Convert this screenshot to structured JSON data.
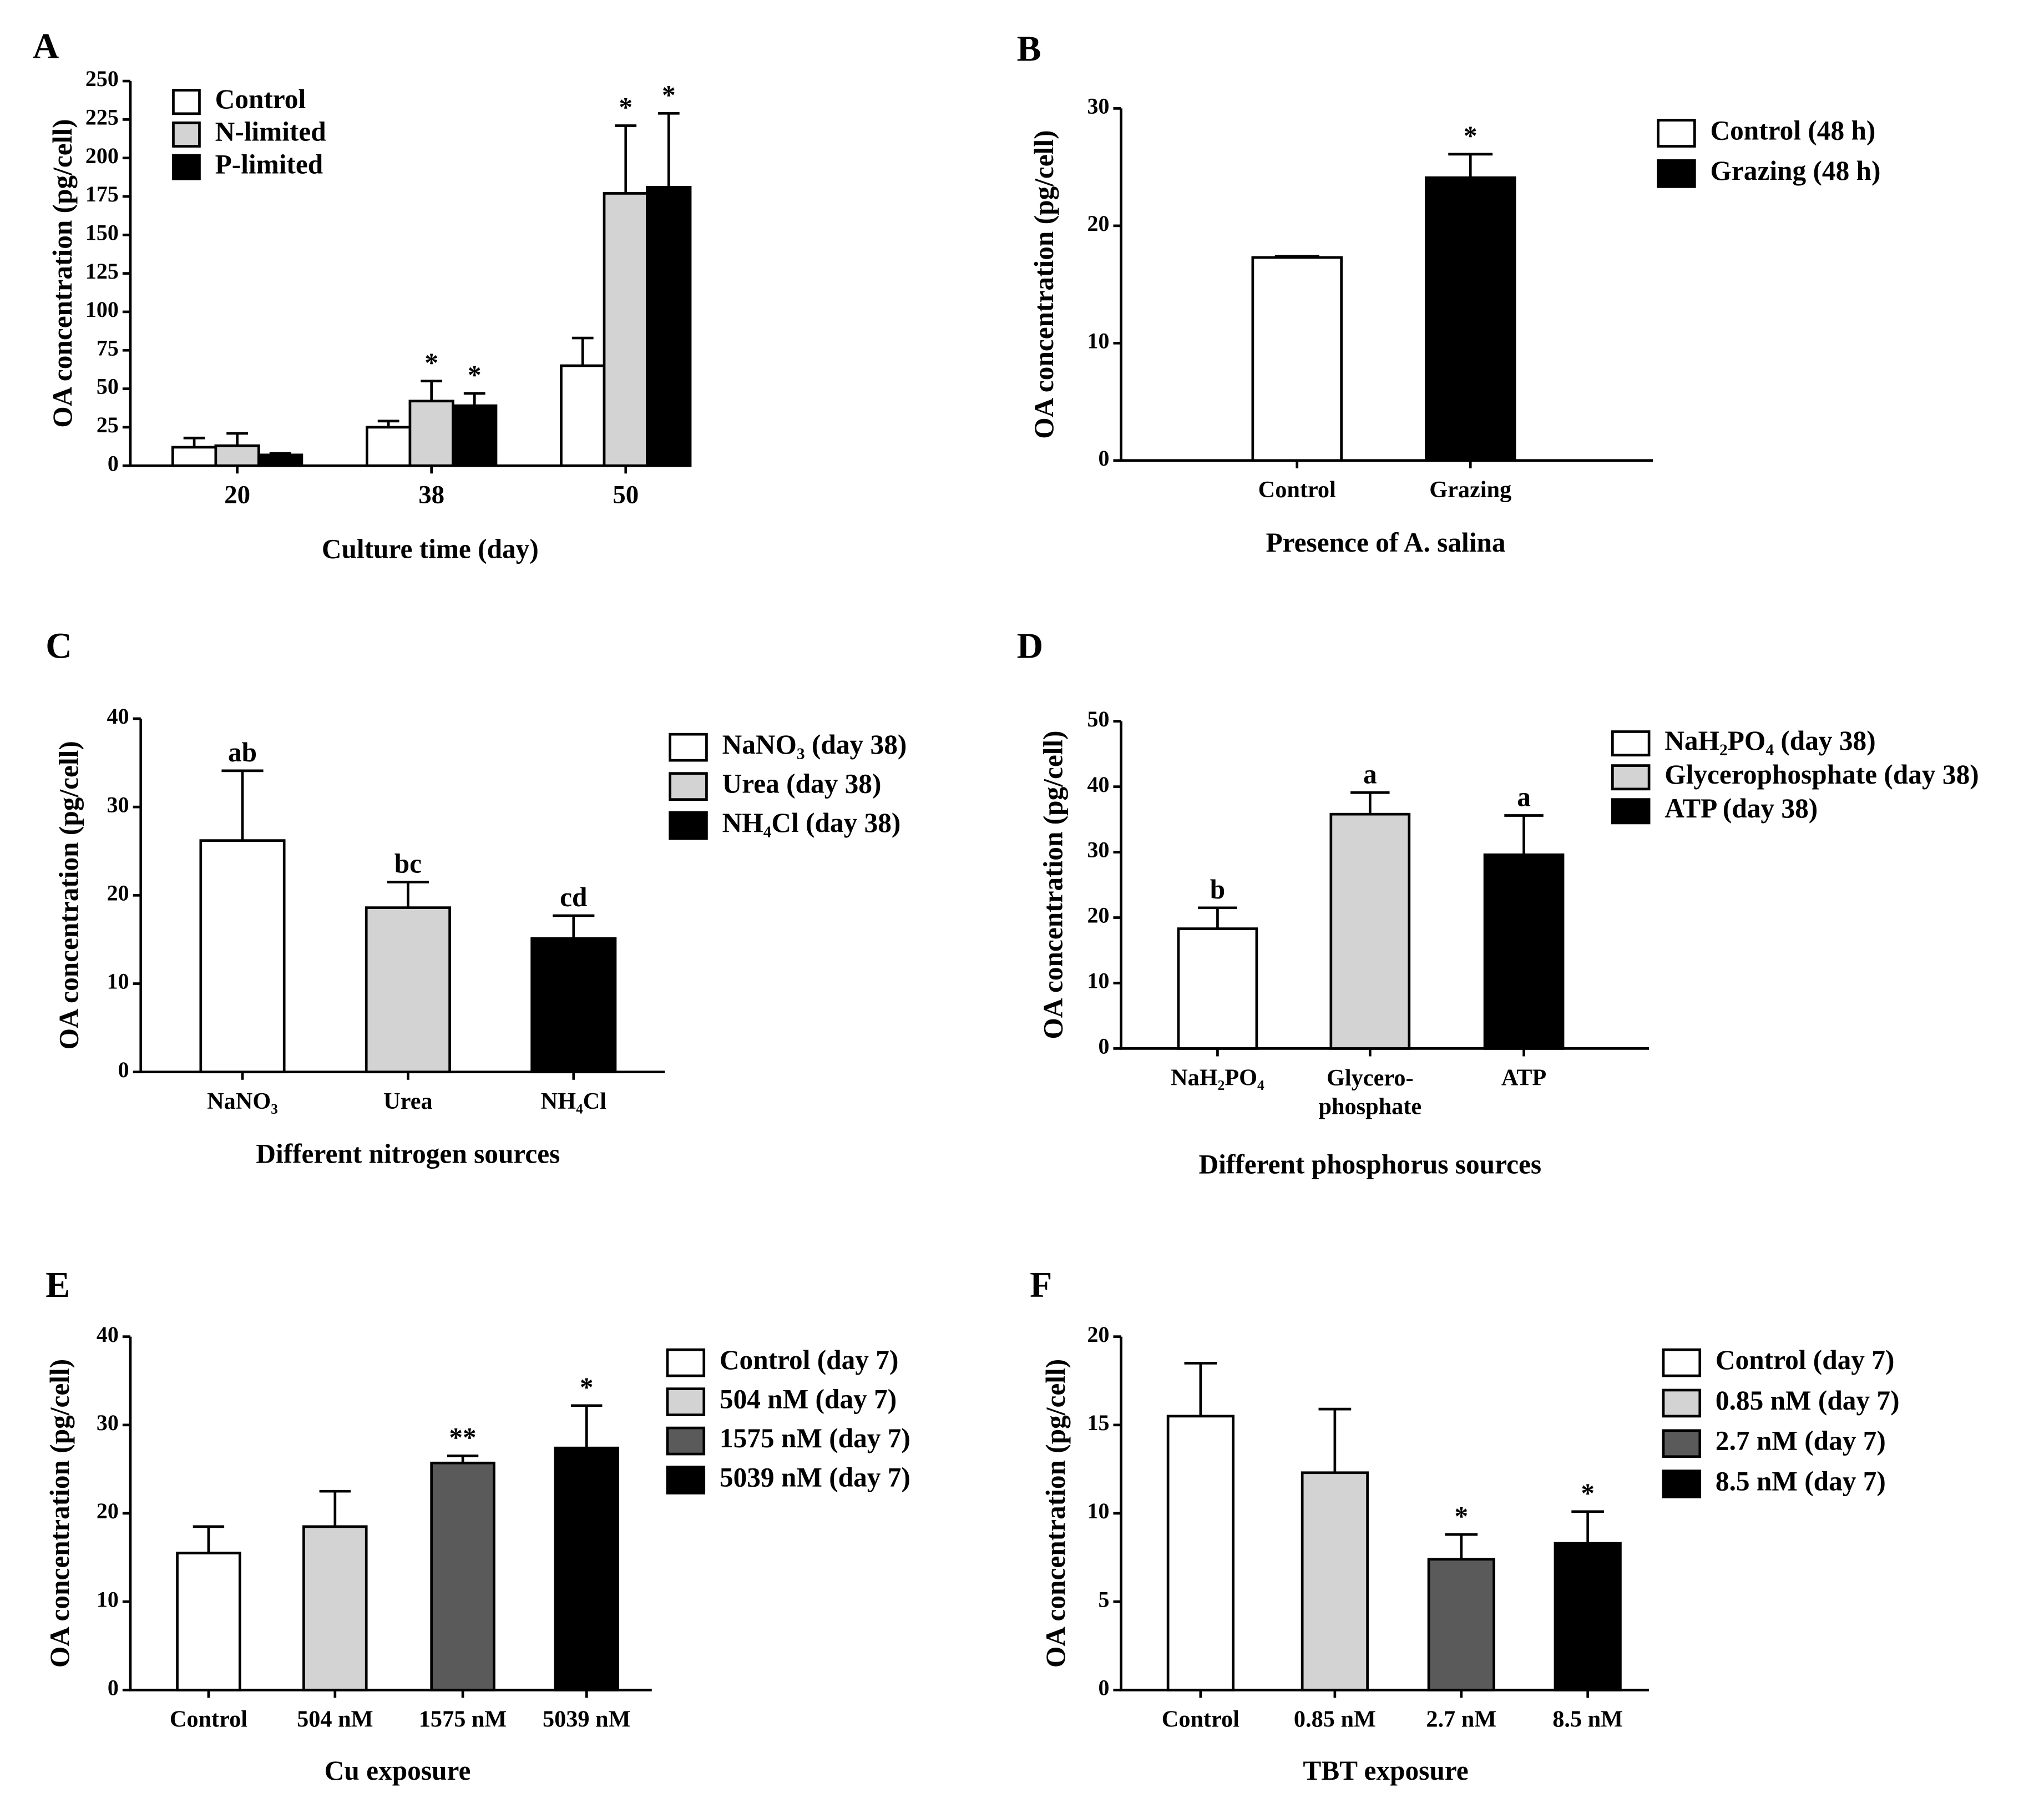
{
  "chart_data": [
    {
      "type": "bar",
      "panel": "A",
      "ylabel": "OA concentration (pg/cell)",
      "xlabel": "Culture time (day)",
      "categories": [
        "20",
        "38",
        "50"
      ],
      "series": [
        {
          "name": "Control",
          "color": "#ffffff",
          "values": [
            12,
            25,
            65
          ],
          "errors": [
            6,
            4,
            18
          ],
          "labels": [
            null,
            null,
            null
          ]
        },
        {
          "name": "N-limited",
          "color": "#d3d3d3",
          "values": [
            13,
            42,
            177
          ],
          "errors": [
            8,
            13,
            44
          ],
          "labels": [
            null,
            "*",
            "*"
          ]
        },
        {
          "name": "P-limited",
          "color": "#000000",
          "values": [
            7,
            39,
            181
          ],
          "errors": [
            1,
            8,
            48
          ],
          "labels": [
            null,
            "*",
            "*"
          ]
        }
      ],
      "ylim": [
        0,
        250
      ],
      "yticks": [
        0,
        25,
        50,
        75,
        100,
        125,
        150,
        175,
        200,
        225,
        250
      ]
    },
    {
      "type": "bar",
      "panel": "B",
      "ylabel": "OA concentration (pg/cell)",
      "xlabel": "Presence of A. salina",
      "categories": [
        "Control",
        "Grazing"
      ],
      "values": [
        17.3,
        24.1
      ],
      "errors": [
        0.1,
        2.0
      ],
      "labels": [
        null,
        "*"
      ],
      "colors": [
        "#ffffff",
        "#000000"
      ],
      "legend": [
        "Control (48 h)",
        "Grazing (48 h)"
      ],
      "ylim": [
        0,
        30
      ],
      "yticks": [
        0,
        10,
        20,
        30
      ]
    },
    {
      "type": "bar",
      "panel": "C",
      "ylabel": "OA concentration (pg/cell)",
      "xlabel": "Different nitrogen sources",
      "categories": [
        "NaNO₃",
        "Urea",
        "NH₄Cl"
      ],
      "values": [
        26.2,
        18.6,
        15.1
      ],
      "errors": [
        7.9,
        2.9,
        2.6
      ],
      "labels": [
        "ab",
        "bc",
        "cd"
      ],
      "colors": [
        "#ffffff",
        "#d3d3d3",
        "#000000"
      ],
      "legend": [
        "NaNO₃ (day 38)",
        "Urea (day 38)",
        "NH₄Cl (day 38)"
      ],
      "ylim": [
        0,
        40
      ],
      "yticks": [
        0,
        10,
        20,
        30,
        40
      ]
    },
    {
      "type": "bar",
      "panel": "D",
      "ylabel": "OA concentration (pg/cell)",
      "xlabel": "Different phosphorus sources",
      "categories": [
        "NaH₂PO₄",
        "Glycero-\nphosphate",
        "ATP"
      ],
      "values": [
        18.3,
        35.8,
        29.6
      ],
      "errors": [
        3.2,
        3.3,
        6.0
      ],
      "labels": [
        "b",
        "a",
        "a"
      ],
      "colors": [
        "#ffffff",
        "#d3d3d3",
        "#000000"
      ],
      "legend": [
        "NaH₂PO₄ (day 38)",
        "Glycerophosphate (day 38)",
        "ATP (day 38)"
      ],
      "ylim": [
        0,
        50
      ],
      "yticks": [
        0,
        10,
        20,
        30,
        40,
        50
      ]
    },
    {
      "type": "bar",
      "panel": "E",
      "ylabel": "OA concentration (pg/cell)",
      "xlabel": "Cu exposure",
      "categories": [
        "Control",
        "504 nM",
        "1575 nM",
        "5039 nM"
      ],
      "values": [
        15.5,
        18.5,
        25.7,
        27.4
      ],
      "errors": [
        3.0,
        4.0,
        0.8,
        4.8
      ],
      "labels": [
        null,
        null,
        "**",
        "*"
      ],
      "colors": [
        "#ffffff",
        "#d3d3d3",
        "#5a5a5a",
        "#000000"
      ],
      "legend": [
        "Control (day 7)",
        "504 nM (day 7)",
        "1575 nM (day 7)",
        "5039 nM (day 7)"
      ],
      "ylim": [
        0,
        40
      ],
      "yticks": [
        0,
        10,
        20,
        30,
        40
      ]
    },
    {
      "type": "bar",
      "panel": "F",
      "ylabel": "OA concentration (pg/cell)",
      "xlabel": "TBT exposure",
      "categories": [
        "Control",
        "0.85 nM",
        "2.7 nM",
        "8.5 nM"
      ],
      "values": [
        15.5,
        12.3,
        7.4,
        8.3
      ],
      "errors": [
        3.0,
        3.6,
        1.4,
        1.8
      ],
      "labels": [
        null,
        null,
        "*",
        "*"
      ],
      "colors": [
        "#ffffff",
        "#d3d3d3",
        "#5a5a5a",
        "#000000"
      ],
      "legend": [
        "Control (day 7)",
        "0.85 nM (day 7)",
        "2.7 nM (day 7)",
        "8.5 nM (day 7)"
      ],
      "ylim": [
        0,
        20
      ],
      "yticks": [
        0,
        5,
        10,
        15,
        20
      ]
    }
  ]
}
